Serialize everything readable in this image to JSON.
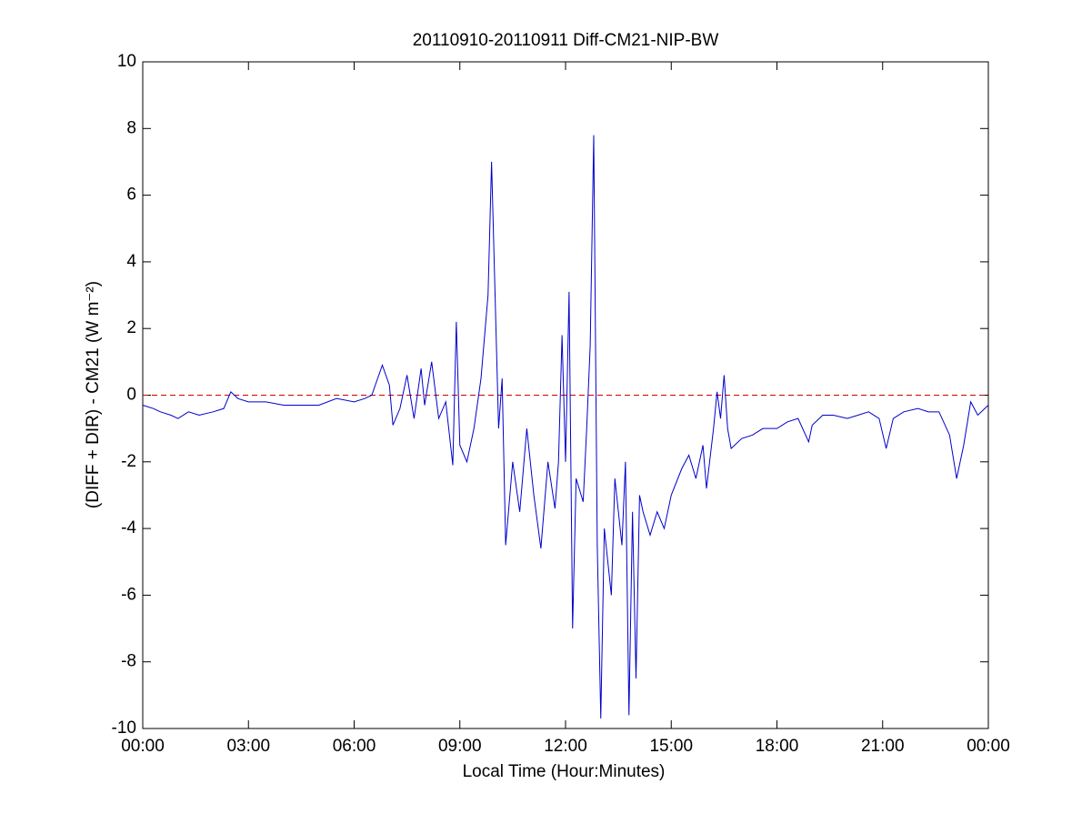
{
  "chart_data": {
    "type": "line",
    "title": "20110910-20110911 Diff-CM21-NIP-BW",
    "xlabel": "Local Time (Hour:Minutes)",
    "ylabel": "(DIFF + DIR) - CM21 (W m⁻²)",
    "x": [
      0,
      0.3,
      0.5,
      0.8,
      1.0,
      1.3,
      1.6,
      2.0,
      2.3,
      2.5,
      2.7,
      3.0,
      3.5,
      4.0,
      4.5,
      5.0,
      5.5,
      6.0,
      6.3,
      6.5,
      6.8,
      7.0,
      7.1,
      7.3,
      7.5,
      7.7,
      7.9,
      8.0,
      8.2,
      8.4,
      8.6,
      8.8,
      8.9,
      9.0,
      9.2,
      9.4,
      9.6,
      9.8,
      9.9,
      10.0,
      10.1,
      10.2,
      10.3,
      10.5,
      10.7,
      10.9,
      11.1,
      11.3,
      11.5,
      11.7,
      11.8,
      11.9,
      12.0,
      12.1,
      12.2,
      12.3,
      12.5,
      12.6,
      12.7,
      12.8,
      12.9,
      13.0,
      13.1,
      13.3,
      13.4,
      13.6,
      13.7,
      13.8,
      13.9,
      14.0,
      14.1,
      14.2,
      14.4,
      14.6,
      14.8,
      15.0,
      15.3,
      15.5,
      15.7,
      15.9,
      16.0,
      16.2,
      16.3,
      16.4,
      16.5,
      16.6,
      16.7,
      17.0,
      17.3,
      17.6,
      18.0,
      18.3,
      18.6,
      18.9,
      19.0,
      19.3,
      19.6,
      20.0,
      20.3,
      20.6,
      20.9,
      21.1,
      21.3,
      21.6,
      22.0,
      22.3,
      22.6,
      22.9,
      23.1,
      23.3,
      23.5,
      23.7,
      23.9,
      24.0
    ],
    "series": [
      {
        "color": "#0000cc",
        "values": [
          -0.3,
          -0.4,
          -0.5,
          -0.6,
          -0.7,
          -0.5,
          -0.6,
          -0.5,
          -0.4,
          0.1,
          -0.1,
          -0.2,
          -0.2,
          -0.3,
          -0.3,
          -0.3,
          -0.1,
          -0.2,
          -0.1,
          0.0,
          0.9,
          0.3,
          -0.9,
          -0.4,
          0.6,
          -0.7,
          0.8,
          -0.3,
          1.0,
          -0.7,
          -0.2,
          -2.1,
          2.2,
          -1.5,
          -2.0,
          -1.0,
          0.5,
          3.0,
          7.0,
          3.0,
          -1.0,
          0.5,
          -4.5,
          -2.0,
          -3.5,
          -1.0,
          -3.0,
          -4.6,
          -2.0,
          -3.4,
          -2.0,
          1.8,
          -2.0,
          3.1,
          -7.0,
          -2.5,
          -3.2,
          -1.0,
          1.5,
          7.8,
          -4.5,
          -9.7,
          -4.0,
          -6.0,
          -2.5,
          -4.5,
          -2.0,
          -9.6,
          -3.5,
          -8.5,
          -3.0,
          -3.5,
          -4.2,
          -3.5,
          -4.0,
          -3.0,
          -2.2,
          -1.8,
          -2.5,
          -1.5,
          -2.8,
          -1.0,
          0.1,
          -0.7,
          0.6,
          -1.0,
          -1.6,
          -1.3,
          -1.2,
          -1.0,
          -1.0,
          -0.8,
          -0.7,
          -1.4,
          -0.9,
          -0.6,
          -0.6,
          -0.7,
          -0.6,
          -0.5,
          -0.7,
          -1.6,
          -0.7,
          -0.5,
          -0.4,
          -0.5,
          -0.5,
          -1.2,
          -2.5,
          -1.5,
          -0.2,
          -0.6,
          -0.4,
          -0.3
        ]
      }
    ],
    "reference_line": {
      "value": 0,
      "color": "#cc0000",
      "style": "dashed"
    },
    "xlim": [
      0,
      24
    ],
    "xticks": [
      {
        "value": 0,
        "label": "00:00"
      },
      {
        "value": 3,
        "label": "03:00"
      },
      {
        "value": 6,
        "label": "06:00"
      },
      {
        "value": 9,
        "label": "09:00"
      },
      {
        "value": 12,
        "label": "12:00"
      },
      {
        "value": 15,
        "label": "15:00"
      },
      {
        "value": 18,
        "label": "18:00"
      },
      {
        "value": 21,
        "label": "21:00"
      },
      {
        "value": 24,
        "label": "00:00"
      }
    ],
    "ylim": [
      -10,
      10
    ],
    "yticks": [
      -10,
      -8,
      -6,
      -4,
      -2,
      0,
      2,
      4,
      6,
      8,
      10
    ],
    "grid": false
  }
}
